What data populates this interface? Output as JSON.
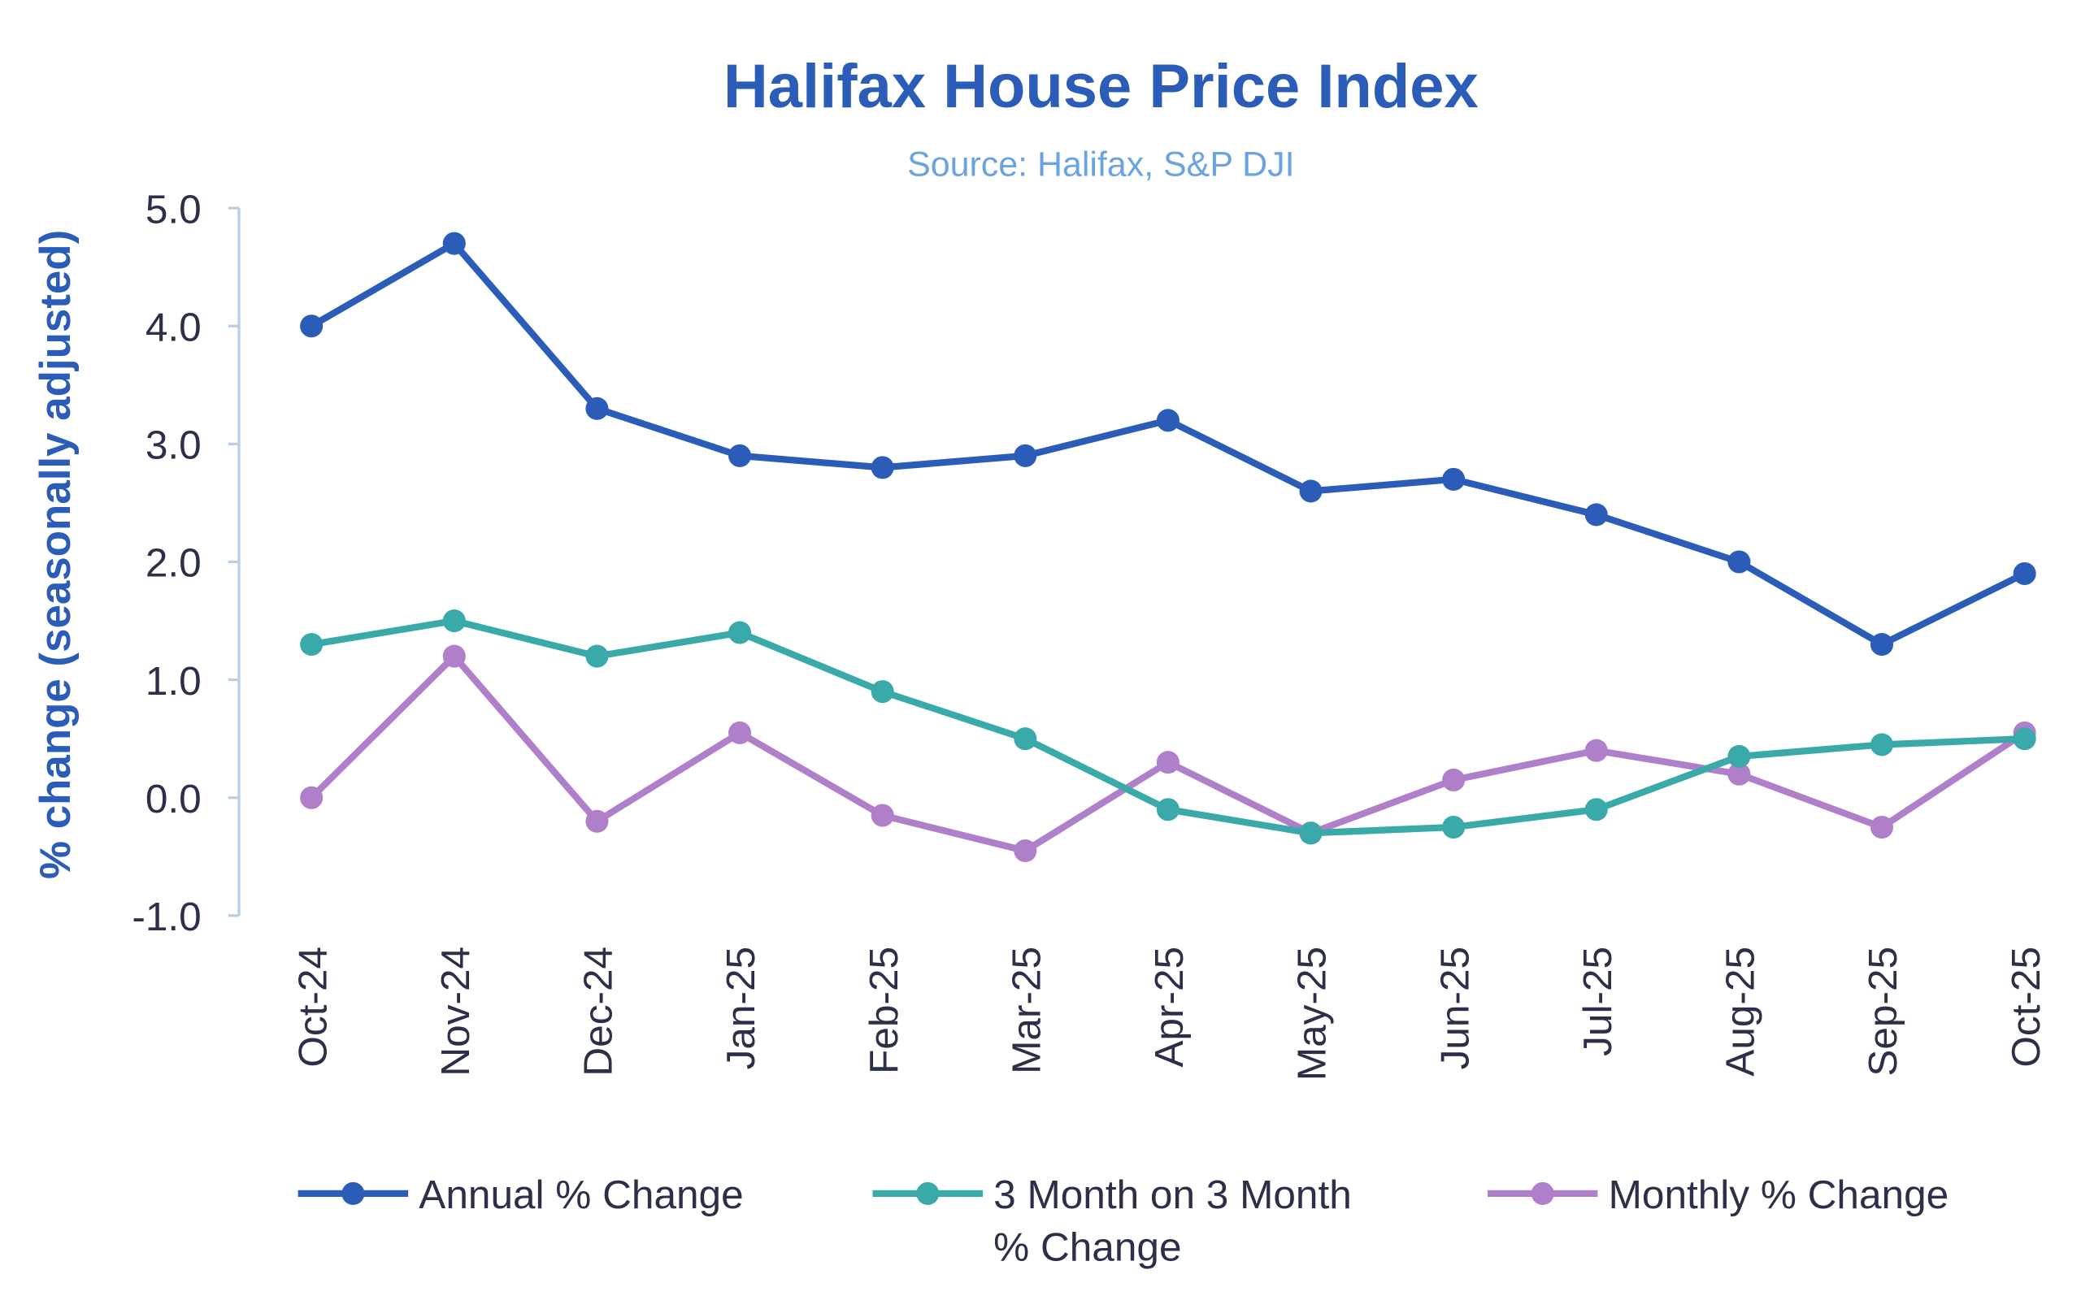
{
  "chart_data": {
    "type": "line",
    "title": "Halifax House Price Index",
    "subtitle": "Source: Halifax, S&P DJI",
    "xlabel": "",
    "ylabel": "% change (seasonally adjusted)",
    "ylim": [
      -1.0,
      5.0
    ],
    "yticks": [
      "5.0",
      "4.0",
      "3.0",
      "2.0",
      "1.0",
      "0.0",
      "-1.0"
    ],
    "ytick_values": [
      5,
      4,
      3,
      2,
      1,
      0,
      -1
    ],
    "grid": false,
    "legend_placement": "bottom",
    "categories": [
      "Oct-24",
      "Nov-24",
      "Dec-24",
      "Jan-25",
      "Feb-25",
      "Mar-25",
      "Apr-25",
      "May-25",
      "Jun-25",
      "Jul-25",
      "Aug-25",
      "Sep-25",
      "Oct-25"
    ],
    "series": [
      {
        "name": "Annual % Change",
        "legend_lines": [
          "Annual % Change"
        ],
        "color": "#2a5cb8",
        "values": [
          4.0,
          4.7,
          3.3,
          2.9,
          2.8,
          2.9,
          3.2,
          2.6,
          2.7,
          2.4,
          2.0,
          1.3,
          1.9
        ]
      },
      {
        "name": "3 Month on 3 Month % Change",
        "legend_lines": [
          "3 Month on 3 Month",
          "% Change"
        ],
        "color": "#3aa9a9",
        "values": [
          1.3,
          1.5,
          1.2,
          1.4,
          0.9,
          0.5,
          -0.1,
          -0.3,
          -0.25,
          -0.1,
          0.35,
          0.45,
          0.5
        ]
      },
      {
        "name": "Monthly % Change",
        "legend_lines": [
          "Monthly % Change"
        ],
        "color": "#b07fc9",
        "values": [
          0.0,
          1.2,
          -0.2,
          0.55,
          -0.15,
          -0.45,
          0.3,
          -0.3,
          0.15,
          0.4,
          0.2,
          -0.25,
          0.55
        ]
      }
    ],
    "colors": {
      "title": "#2a5cb8",
      "subtitle": "#6aa3e0",
      "axis": "#b9cfe6",
      "text": "#2b2f48"
    }
  }
}
